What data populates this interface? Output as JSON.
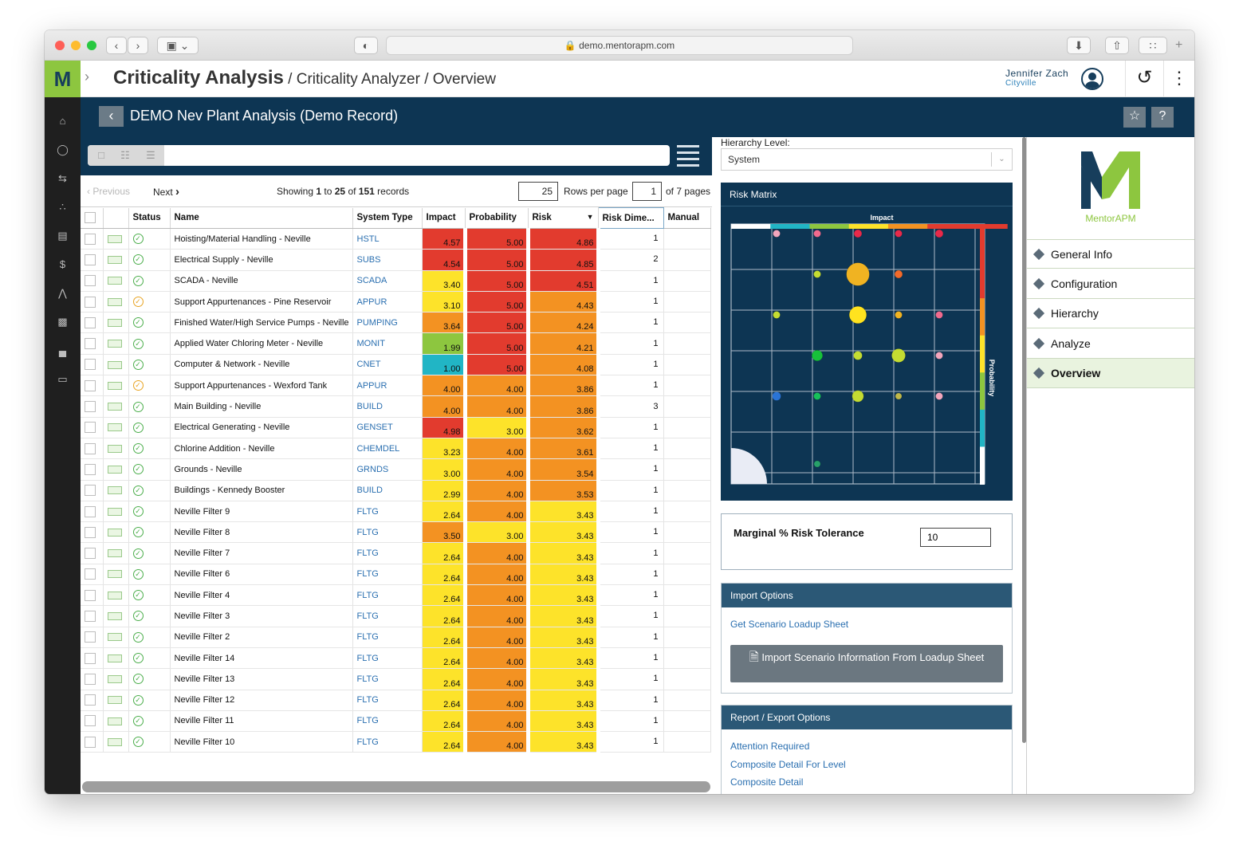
{
  "browser": {
    "url": "demo.mentorapm.com"
  },
  "header": {
    "logo": "M",
    "crumb_main": "Criticality Analysis",
    "crumb_sep1": " / ",
    "crumb_2": "Criticality Analyzer",
    "crumb_sep2": " / ",
    "crumb_3": "Overview",
    "user_name": "Jennifer Zach",
    "user_org": "Cityville"
  },
  "record": {
    "title": "DEMO Nev Plant Analysis (Demo Record)"
  },
  "pager": {
    "previous": "Previous",
    "next": "Next",
    "showing_prefix": "Showing ",
    "from": "1",
    "to_word": " to ",
    "to": "25",
    "of_word": " of ",
    "total": "151",
    "records_word": " records",
    "rows_per_page_value": "25",
    "rows_per_page_label": "Rows per page",
    "page_value": "1",
    "pages_label": "of 7 pages"
  },
  "table": {
    "headers": {
      "status": "Status",
      "name": "Name",
      "system_type": "System Type",
      "impact": "Impact",
      "probability": "Probability",
      "risk": "Risk",
      "risk_dim": "Risk Dime...",
      "manual": "Manual"
    },
    "rows": [
      {
        "status": "ok",
        "name": "Hoisting/Material Handling - Neville",
        "sys": "HSTL",
        "impact": "4.57",
        "prob": "5.00",
        "risk": "4.86",
        "dim": "1"
      },
      {
        "status": "ok",
        "name": "Electrical Supply - Neville",
        "sys": "SUBS",
        "impact": "4.54",
        "prob": "5.00",
        "risk": "4.85",
        "dim": "2"
      },
      {
        "status": "ok",
        "name": "SCADA - Neville",
        "sys": "SCADA",
        "impact": "3.40",
        "prob": "5.00",
        "risk": "4.51",
        "dim": "1"
      },
      {
        "status": "warn",
        "name": "Support Appurtenances - Pine Reservoir",
        "sys": "APPUR",
        "impact": "3.10",
        "prob": "5.00",
        "risk": "4.43",
        "dim": "1"
      },
      {
        "status": "ok",
        "name": "Finished Water/High Service Pumps - Neville",
        "sys": "PUMPING",
        "impact": "3.64",
        "prob": "5.00",
        "risk": "4.24",
        "dim": "1"
      },
      {
        "status": "ok",
        "name": "Applied Water Chloring Meter - Neville",
        "sys": "MONIT",
        "impact": "1.99",
        "prob": "5.00",
        "risk": "4.21",
        "dim": "1"
      },
      {
        "status": "ok",
        "name": "Computer & Network - Neville",
        "sys": "CNET",
        "impact": "1.00",
        "prob": "5.00",
        "risk": "4.08",
        "dim": "1"
      },
      {
        "status": "warn",
        "name": "Support Appurtenances - Wexford Tank",
        "sys": "APPUR",
        "impact": "4.00",
        "prob": "4.00",
        "risk": "3.86",
        "dim": "1"
      },
      {
        "status": "ok",
        "name": "Main Building - Neville",
        "sys": "BUILD",
        "impact": "4.00",
        "prob": "4.00",
        "risk": "3.86",
        "dim": "3"
      },
      {
        "status": "ok",
        "name": "Electrical Generating - Neville",
        "sys": "GENSET",
        "impact": "4.98",
        "prob": "3.00",
        "risk": "3.62",
        "dim": "1"
      },
      {
        "status": "ok",
        "name": "Chlorine Addition - Neville",
        "sys": "CHEMDEL",
        "impact": "3.23",
        "prob": "4.00",
        "risk": "3.61",
        "dim": "1"
      },
      {
        "status": "ok",
        "name": "Grounds - Neville",
        "sys": "GRNDS",
        "impact": "3.00",
        "prob": "4.00",
        "risk": "3.54",
        "dim": "1"
      },
      {
        "status": "ok",
        "name": "Buildings - Kennedy Booster",
        "sys": "BUILD",
        "impact": "2.99",
        "prob": "4.00",
        "risk": "3.53",
        "dim": "1"
      },
      {
        "status": "ok",
        "name": "Neville Filter 9",
        "sys": "FLTG",
        "impact": "2.64",
        "prob": "4.00",
        "risk": "3.43",
        "dim": "1"
      },
      {
        "status": "ok",
        "name": "Neville Filter 8",
        "sys": "FLTG",
        "impact": "3.50",
        "prob": "3.00",
        "risk": "3.43",
        "dim": "1"
      },
      {
        "status": "ok",
        "name": "Neville Filter 7",
        "sys": "FLTG",
        "impact": "2.64",
        "prob": "4.00",
        "risk": "3.43",
        "dim": "1"
      },
      {
        "status": "ok",
        "name": "Neville Filter 6",
        "sys": "FLTG",
        "impact": "2.64",
        "prob": "4.00",
        "risk": "3.43",
        "dim": "1"
      },
      {
        "status": "ok",
        "name": "Neville Filter 4",
        "sys": "FLTG",
        "impact": "2.64",
        "prob": "4.00",
        "risk": "3.43",
        "dim": "1"
      },
      {
        "status": "ok",
        "name": "Neville Filter 3",
        "sys": "FLTG",
        "impact": "2.64",
        "prob": "4.00",
        "risk": "3.43",
        "dim": "1"
      },
      {
        "status": "ok",
        "name": "Neville Filter 2",
        "sys": "FLTG",
        "impact": "2.64",
        "prob": "4.00",
        "risk": "3.43",
        "dim": "1"
      },
      {
        "status": "ok",
        "name": "Neville Filter 14",
        "sys": "FLTG",
        "impact": "2.64",
        "prob": "4.00",
        "risk": "3.43",
        "dim": "1"
      },
      {
        "status": "ok",
        "name": "Neville Filter 13",
        "sys": "FLTG",
        "impact": "2.64",
        "prob": "4.00",
        "risk": "3.43",
        "dim": "1"
      },
      {
        "status": "ok",
        "name": "Neville Filter 12",
        "sys": "FLTG",
        "impact": "2.64",
        "prob": "4.00",
        "risk": "3.43",
        "dim": "1"
      },
      {
        "status": "ok",
        "name": "Neville Filter 11",
        "sys": "FLTG",
        "impact": "2.64",
        "prob": "4.00",
        "risk": "3.43",
        "dim": "1"
      },
      {
        "status": "ok",
        "name": "Neville Filter 10",
        "sys": "FLTG",
        "impact": "2.64",
        "prob": "4.00",
        "risk": "3.43",
        "dim": "1"
      }
    ]
  },
  "hierarchy": {
    "label": "Hierarchy Level:",
    "value": "System"
  },
  "risk_matrix": {
    "title": "Risk Matrix",
    "x_label": "Impact",
    "y_label": "Probability",
    "points": [
      {
        "i": 1,
        "p": 5,
        "c": "#f3a6bd",
        "s": 1
      },
      {
        "i": 2,
        "p": 5,
        "c": "#f06a8e",
        "s": 1
      },
      {
        "i": 3,
        "p": 5,
        "c": "#e8294a",
        "s": 1.1
      },
      {
        "i": 4,
        "p": 5,
        "c": "#e8294a",
        "s": 1
      },
      {
        "i": 5,
        "p": 5,
        "c": "#e8294a",
        "s": 1.1
      },
      {
        "i": 2,
        "p": 4,
        "c": "#c4dc32",
        "s": 1
      },
      {
        "i": 3,
        "p": 4,
        "c": "#f0b322",
        "s": 3.2
      },
      {
        "i": 4,
        "p": 4,
        "c": "#f36a2a",
        "s": 1.1
      },
      {
        "i": 1,
        "p": 3,
        "c": "#c4dc32",
        "s": 1
      },
      {
        "i": 3,
        "p": 3,
        "c": "#ffe31f",
        "s": 2.4
      },
      {
        "i": 4,
        "p": 3,
        "c": "#f0b322",
        "s": 1
      },
      {
        "i": 5,
        "p": 3,
        "c": "#f06a8e",
        "s": 1
      },
      {
        "i": 2,
        "p": 2,
        "c": "#17c13a",
        "s": 1.5
      },
      {
        "i": 3,
        "p": 2,
        "c": "#c4dc32",
        "s": 1.2
      },
      {
        "i": 4,
        "p": 2,
        "c": "#c4dc32",
        "s": 1.9
      },
      {
        "i": 5,
        "p": 2,
        "c": "#f3a6bd",
        "s": 1
      },
      {
        "i": 1,
        "p": 1,
        "c": "#2a74d6",
        "s": 1.2
      },
      {
        "i": 2,
        "p": 1,
        "c": "#17c15a",
        "s": 1
      },
      {
        "i": 3,
        "p": 1,
        "c": "#c4dc32",
        "s": 1.6
      },
      {
        "i": 4,
        "p": 1,
        "c": "#c0b84a",
        "s": 0.9
      },
      {
        "i": 5,
        "p": 1,
        "c": "#f3a6bd",
        "s": 1
      },
      {
        "i": 2,
        "p": 0,
        "c": "#27a06a",
        "s": 0.9
      }
    ]
  },
  "tolerance": {
    "label": "Marginal % Risk Tolerance",
    "value": "10"
  },
  "import": {
    "title": "Import Options",
    "link": "Get Scenario Loadup Sheet",
    "button": "Import Scenario Information From Loadup Sheet"
  },
  "report": {
    "title": "Report / Export Options",
    "links": [
      "Attention Required",
      "Composite Detail For Level",
      "Composite Detail"
    ]
  },
  "rnav": {
    "brand": "MentorAPM",
    "items": [
      "General Info",
      "Configuration",
      "Hierarchy",
      "Analyze",
      "Overview"
    ]
  },
  "colors": {
    "navy": "#0d3553",
    "green": "#8dc63f",
    "red": "#e23b2e",
    "orange": "#f39222",
    "yellow": "#fde32a",
    "lime": "#8dc63f",
    "teal": "#21b5c5"
  }
}
